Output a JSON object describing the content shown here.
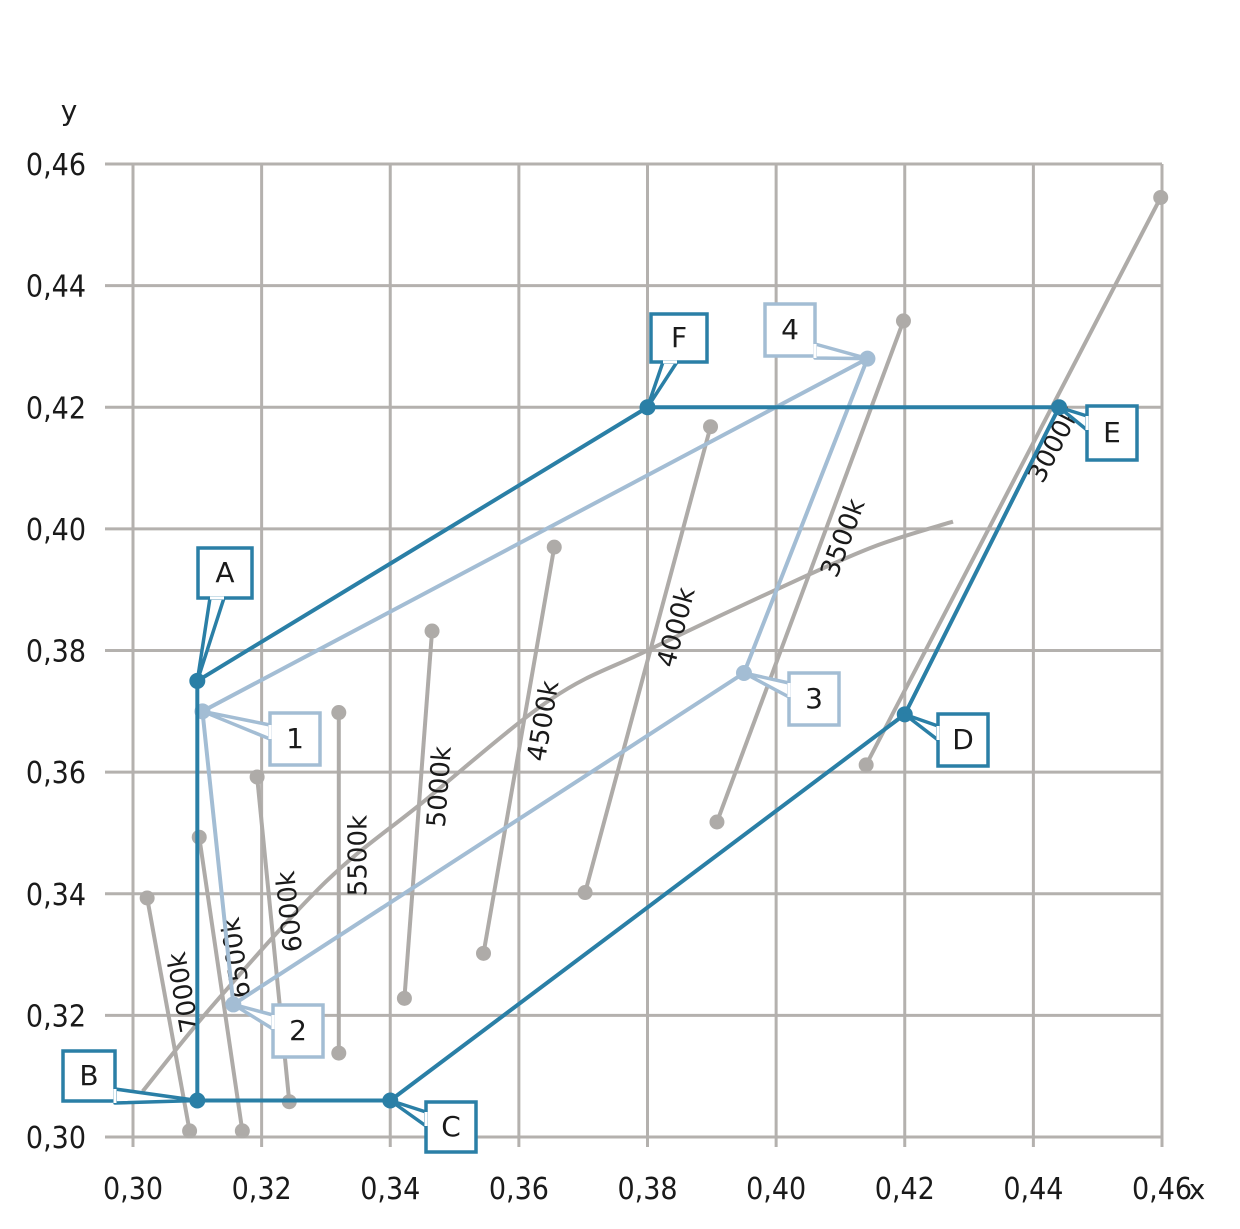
{
  "chart_data": {
    "type": "line",
    "xlabel": "x",
    "ylabel": "y",
    "xlim": [
      0.3,
      0.46
    ],
    "ylim": [
      0.3,
      0.46
    ],
    "x_ticks": [
      "0,30",
      "0,32",
      "0,34",
      "0,36",
      "0,38",
      "0,40",
      "0,42",
      "0,44",
      "0,46"
    ],
    "y_ticks": [
      "0,30",
      "0,32",
      "0,34",
      "0,36",
      "0,38",
      "0,40",
      "0,42",
      "0,44",
      "0,46"
    ],
    "grid": true,
    "colors": {
      "grid": "#b4b1ae",
      "gray": "#aeaba8",
      "outer": "#2a7fa6",
      "inner": "#a3bdd4"
    },
    "planckian_locus": [
      [
        0.3015,
        0.3075
      ],
      [
        0.3127,
        0.322
      ],
      [
        0.33,
        0.342
      ],
      [
        0.345,
        0.355
      ],
      [
        0.365,
        0.372
      ],
      [
        0.38,
        0.38
      ],
      [
        0.4,
        0.39
      ],
      [
        0.415,
        0.397
      ],
      [
        0.4275,
        0.4012
      ]
    ],
    "isotemperature_lines": [
      {
        "label": "7000k",
        "from": [
          0.3022,
          0.3393
        ],
        "to": [
          0.3088,
          0.301
        ]
      },
      {
        "label": "6500k",
        "from": [
          0.3103,
          0.3493
        ],
        "to": [
          0.317,
          0.301
        ]
      },
      {
        "label": "6000k",
        "from": [
          0.3193,
          0.3592
        ],
        "to": [
          0.3243,
          0.3058
        ]
      },
      {
        "label": "5500k",
        "from": [
          0.332,
          0.3698
        ],
        "to": [
          0.332,
          0.3138
        ]
      },
      {
        "label": "5000k",
        "from": [
          0.3465,
          0.3832
        ],
        "to": [
          0.3422,
          0.3228
        ]
      },
      {
        "label": "4500k",
        "from": [
          0.3655,
          0.397
        ],
        "to": [
          0.3545,
          0.3302
        ]
      },
      {
        "label": "4000k",
        "from": [
          0.3898,
          0.4168
        ],
        "to": [
          0.3703,
          0.3402
        ]
      },
      {
        "label": "3500k",
        "from": [
          0.4198,
          0.4342
        ],
        "to": [
          0.3908,
          0.3518
        ]
      },
      {
        "label": "3000k",
        "from": [
          0.4598,
          0.4545
        ],
        "to": [
          0.414,
          0.3612
        ]
      }
    ],
    "series": [
      {
        "points": [
          {
            "label": "A",
            "x": 0.31,
            "y": 0.375
          },
          {
            "label": "B",
            "x": 0.31,
            "y": 0.306
          },
          {
            "label": "C",
            "x": 0.34,
            "y": 0.306
          },
          {
            "label": "D",
            "x": 0.42,
            "y": 0.3695
          },
          {
            "label": "E",
            "x": 0.444,
            "y": 0.42
          },
          {
            "label": "F",
            "x": 0.38,
            "y": 0.42
          }
        ]
      },
      {
        "points": [
          {
            "label": "1",
            "x": 0.3108,
            "y": 0.37
          },
          {
            "label": "2",
            "x": 0.3156,
            "y": 0.3218
          },
          {
            "label": "3",
            "x": 0.395,
            "y": 0.3763
          },
          {
            "label": "4",
            "x": 0.4142,
            "y": 0.428
          }
        ]
      }
    ]
  }
}
